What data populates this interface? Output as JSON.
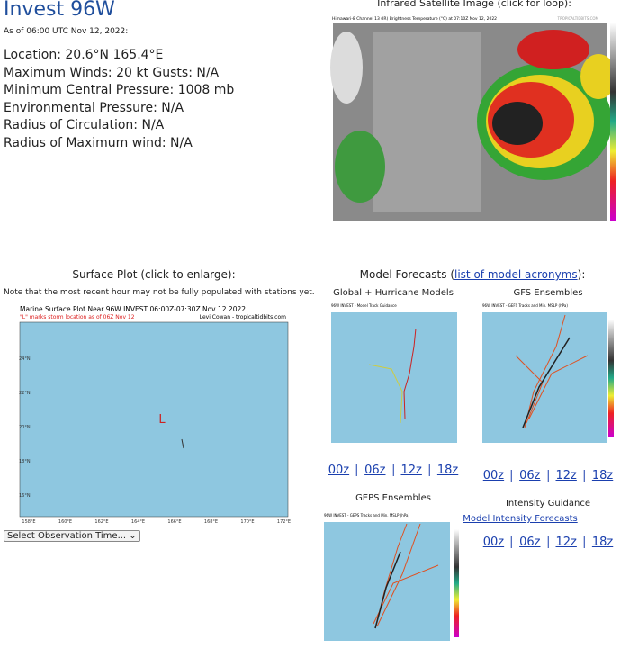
{
  "header": {
    "title": "Invest 96W",
    "asof": "As of 06:00 UTC Nov 12, 2022:"
  },
  "details": [
    "Location: 20.6°N 165.4°E",
    "Maximum Winds: 20 kt  Gusts: N/A",
    "Minimum Central Pressure: 1008 mb",
    "Environmental Pressure: N/A",
    "Radius of Circulation: N/A",
    "Radius of Maximum wind: N/A"
  ],
  "satellite": {
    "heading": "Infrared Satellite Image (click for loop):",
    "caption": "Himawari-8 Channel 13 (IR) Brightness Temperature (°C) at 07:10Z Nov 12, 2022",
    "credit": "TROPICALTIDBITS.COM"
  },
  "surface": {
    "heading": "Surface Plot (click to enlarge):",
    "note": "Note that the most recent hour may not be fully populated with stations yet.",
    "plot_title": "Marine Surface Plot Near 96W INVEST 06:00Z-07:30Z Nov 12 2022",
    "plot_subtitle": "\"L\" marks storm location as of 06Z Nov 12",
    "credit": "Levi Cowan - tropicaltidbits.com",
    "marker": "L",
    "lat_labels": [
      "24°N",
      "22°N",
      "20°N",
      "18°N",
      "16°N"
    ],
    "lon_labels": [
      "158°E",
      "160°E",
      "162°E",
      "164°E",
      "166°E",
      "168°E",
      "170°E",
      "172°E"
    ],
    "select": "Select Observation Time..."
  },
  "models": {
    "heading_pre": "Model Forecasts (",
    "heading_link": "list of model acronyms",
    "heading_post": "):",
    "global": {
      "title": "Global + Hurricane Models",
      "image_title": "96W INVEST - Model Track Guidance",
      "runs": [
        "00z",
        "06z",
        "12z",
        "18z"
      ]
    },
    "gfs": {
      "title": "GFS Ensembles",
      "image_title": "96W INVEST - GEFS Tracks and Min. MSLP (hPa)",
      "runs": [
        "00z",
        "06z",
        "12z",
        "18z"
      ]
    },
    "geps": {
      "title": "GEPS Ensembles",
      "image_title": "96W INVEST - GEPS Tracks and Min. MSLP (hPa)"
    },
    "intensity": {
      "title": "Intensity Guidance",
      "link": "Model Intensity Forecasts",
      "runs": [
        "00z",
        "06z",
        "12z",
        "18z"
      ]
    }
  }
}
